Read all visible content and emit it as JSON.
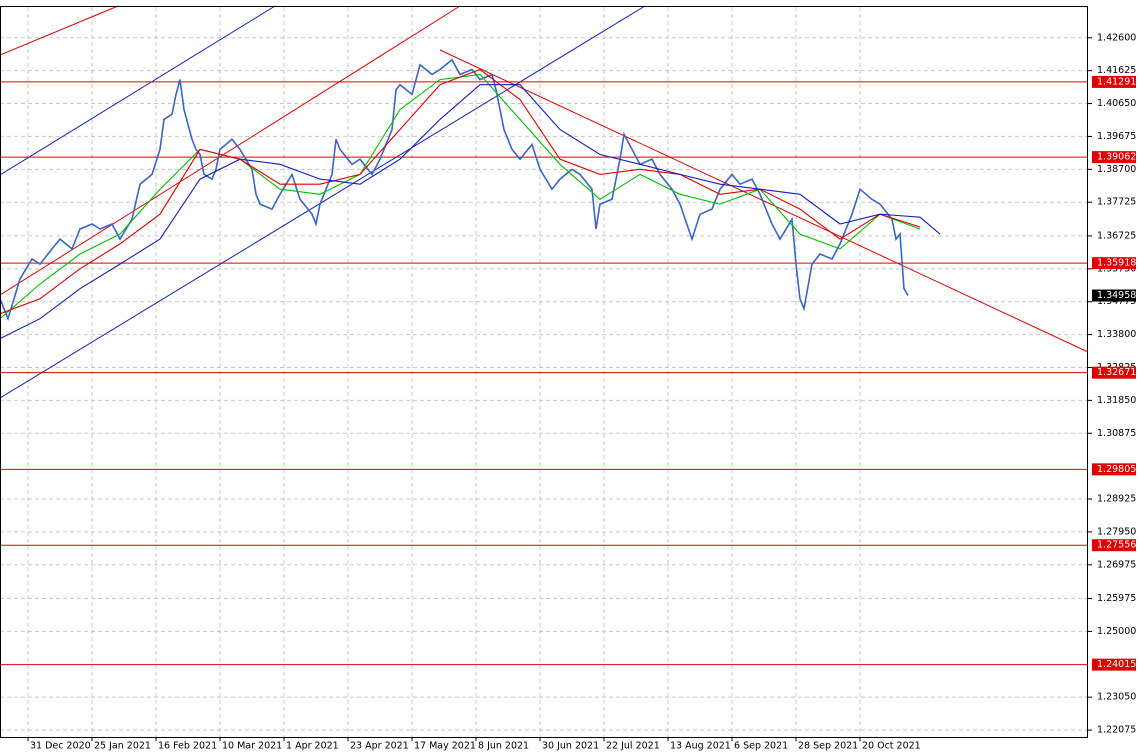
{
  "chart_data": {
    "type": "line",
    "grid": true,
    "xlim": [
      -7,
      265
    ],
    "ylim": [
      1.2184,
      1.4372
    ],
    "xticks": [
      {
        "value": 0,
        "label": "31 Dec 2020"
      },
      {
        "value": 16,
        "label": "25 Jan 2021"
      },
      {
        "value": 32,
        "label": "16 Feb 2021"
      },
      {
        "value": 48,
        "label": "10 Mar 2021"
      },
      {
        "value": 64,
        "label": "1 Apr 2021"
      },
      {
        "value": 80,
        "label": "23 Apr 2021"
      },
      {
        "value": 96,
        "label": "17 May 2021"
      },
      {
        "value": 112,
        "label": "8 Jun 2021"
      },
      {
        "value": 128,
        "label": "30 Jun 2021"
      },
      {
        "value": 144,
        "label": "22 Jul 2021"
      },
      {
        "value": 160,
        "label": "13 Aug 2021"
      },
      {
        "value": 176,
        "label": "6 Sep 2021"
      },
      {
        "value": 192,
        "label": "28 Sep 2021"
      },
      {
        "value": 208,
        "label": "20 Oct 2021"
      }
    ],
    "yticks": [
      {
        "value": 1.426,
        "label": "1.42600"
      },
      {
        "value": 1.41625,
        "label": "1.41625"
      },
      {
        "value": 1.4065,
        "label": "1.40650"
      },
      {
        "value": 1.39675,
        "label": "1.39675"
      },
      {
        "value": 1.387,
        "label": "1.38700"
      },
      {
        "value": 1.37725,
        "label": "1.37725"
      },
      {
        "value": 1.36725,
        "label": "1.36725"
      },
      {
        "value": 1.3575,
        "label": "1.35750"
      },
      {
        "value": 1.34775,
        "label": "1.34775"
      },
      {
        "value": 1.338,
        "label": "1.33800"
      },
      {
        "value": 1.32825,
        "label": "1.32825"
      },
      {
        "value": 1.3185,
        "label": "1.31850"
      },
      {
        "value": 1.30875,
        "label": "1.30875"
      },
      {
        "value": 1.28925,
        "label": "1.28925"
      },
      {
        "value": 1.2795,
        "label": "1.27950"
      },
      {
        "value": 1.26975,
        "label": "1.26975"
      },
      {
        "value": 1.25975,
        "label": "1.25975"
      },
      {
        "value": 1.25,
        "label": "1.25000"
      },
      {
        "value": 1.2305,
        "label": "1.23050"
      },
      {
        "value": 1.22075,
        "label": "1.22075"
      }
    ],
    "levels": [
      1.41291,
      1.39062,
      1.35918,
      1.32671,
      1.29805,
      1.27556,
      1.24015
    ],
    "level_color": "#e00000",
    "last_price": 1.34958,
    "series": [
      {
        "color": "#3a64c8",
        "x": [
          -7,
          -5,
          -2,
          1,
          3,
          6,
          8,
          11,
          13,
          16,
          18,
          21,
          23,
          26,
          28,
          31,
          33,
          34,
          36,
          37,
          38,
          39,
          41,
          42,
          43,
          44,
          46,
          47,
          48,
          51,
          53,
          56,
          57,
          58,
          61,
          63,
          66,
          68,
          71,
          72,
          73,
          76,
          77,
          78,
          81,
          83,
          86,
          88,
          91,
          92,
          93,
          96,
          98,
          101,
          103,
          106,
          108,
          111,
          113,
          116,
          117,
          118,
          119,
          121,
          123,
          126,
          128,
          131,
          133,
          136,
          138,
          141,
          142,
          143,
          146,
          148,
          149,
          151,
          153,
          156,
          158,
          161,
          163,
          166,
          168,
          171,
          173,
          176,
          178,
          181,
          183,
          186,
          188,
          191,
          192,
          193,
          194,
          196,
          198,
          201,
          203,
          206,
          208,
          211,
          213,
          216,
          217,
          218,
          219,
          220
        ],
        "values": [
          1.3486,
          1.3427,
          1.3545,
          1.3604,
          1.3589,
          1.3634,
          1.3663,
          1.3634,
          1.3693,
          1.3708,
          1.3693,
          1.3708,
          1.3663,
          1.3722,
          1.3826,
          1.3855,
          1.3929,
          1.4018,
          1.4033,
          1.4092,
          1.4136,
          1.4047,
          1.3959,
          1.3929,
          1.3914,
          1.3855,
          1.3841,
          1.387,
          1.3929,
          1.3959,
          1.3929,
          1.387,
          1.3796,
          1.3767,
          1.3752,
          1.3796,
          1.3855,
          1.3781,
          1.3737,
          1.3708,
          1.3767,
          1.3855,
          1.3959,
          1.3929,
          1.3885,
          1.39,
          1.3855,
          1.39,
          1.3988,
          1.4106,
          1.4121,
          1.4092,
          1.418,
          1.4151,
          1.4166,
          1.4195,
          1.4151,
          1.4166,
          1.4136,
          1.4151,
          1.4106,
          1.4047,
          1.3988,
          1.3929,
          1.39,
          1.3944,
          1.387,
          1.3811,
          1.3841,
          1.387,
          1.3855,
          1.3811,
          1.3693,
          1.3767,
          1.3781,
          1.39,
          1.3974,
          1.3929,
          1.3885,
          1.39,
          1.3855,
          1.3811,
          1.3767,
          1.3663,
          1.3737,
          1.3752,
          1.3811,
          1.3855,
          1.3826,
          1.3841,
          1.3796,
          1.3708,
          1.3663,
          1.3722,
          1.3589,
          1.3486,
          1.3457,
          1.3589,
          1.3619,
          1.3604,
          1.3649,
          1.3737,
          1.3811,
          1.3781,
          1.3767,
          1.3722,
          1.3663,
          1.3678,
          1.3516,
          1.34958
        ]
      },
      {
        "color": "#00c000",
        "x": [
          -7,
          3,
          13,
          23,
          33,
          43,
          53,
          63,
          73,
          83,
          93,
          103,
          113,
          123,
          133,
          143,
          153,
          163,
          173,
          183,
          193,
          203,
          213,
          223
        ],
        "values": [
          1.3427,
          1.353,
          1.3619,
          1.3678,
          1.3811,
          1.3929,
          1.39,
          1.3811,
          1.3796,
          1.3855,
          1.4047,
          1.4136,
          1.4151,
          1.4018,
          1.3885,
          1.3781,
          1.3855,
          1.3796,
          1.3767,
          1.3811,
          1.3678,
          1.3634,
          1.3737,
          1.3693
        ]
      },
      {
        "color": "#e00000",
        "x": [
          -7,
          3,
          13,
          23,
          33,
          43,
          53,
          63,
          73,
          83,
          93,
          103,
          113,
          123,
          133,
          143,
          153,
          163,
          173,
          183,
          193,
          203,
          213,
          223
        ],
        "values": [
          1.3442,
          1.3486,
          1.3575,
          1.3649,
          1.3737,
          1.3929,
          1.39,
          1.3826,
          1.3826,
          1.3855,
          1.3988,
          1.4121,
          1.4166,
          1.4077,
          1.39,
          1.3855,
          1.387,
          1.3855,
          1.3796,
          1.3811,
          1.3752,
          1.3663,
          1.3737,
          1.3699
        ]
      },
      {
        "color": "#1020c0",
        "x": [
          -7,
          3,
          13,
          23,
          33,
          43,
          53,
          63,
          73,
          83,
          93,
          103,
          113,
          123,
          133,
          143,
          153,
          163,
          173,
          183,
          193,
          203,
          213,
          223,
          228
        ],
        "values": [
          1.3368,
          1.3427,
          1.3516,
          1.3589,
          1.3663,
          1.3841,
          1.39,
          1.3885,
          1.3841,
          1.3826,
          1.39,
          1.4018,
          1.4121,
          1.4121,
          1.3988,
          1.3914,
          1.3885,
          1.3855,
          1.3826,
          1.3811,
          1.3796,
          1.3708,
          1.3737,
          1.3728,
          1.3678
        ]
      }
    ]
  }
}
